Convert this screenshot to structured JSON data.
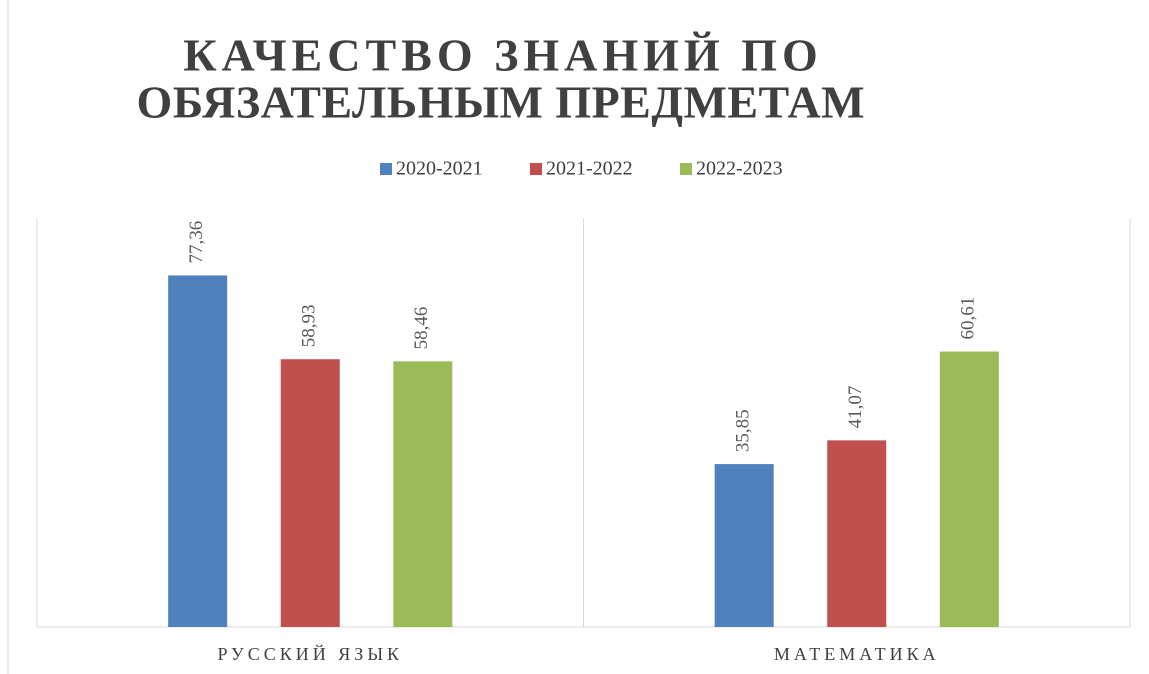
{
  "chart_data": {
    "type": "bar",
    "title": [
      "КАЧЕСТВО ЗНАНИЙ ПО",
      "ОБЯЗАТЕЛЬНЫМ ПРЕДМЕТАМ"
    ],
    "categories": [
      "РУССКИЙ ЯЗЫК",
      "МАТЕМАТИКА"
    ],
    "series": [
      {
        "name": "2020-2021",
        "color": "#4f81bd",
        "values": [
          77.36,
          35.85
        ],
        "value_labels": [
          "77,36",
          "35,85"
        ]
      },
      {
        "name": "2021-2022",
        "color": "#c0504d",
        "values": [
          58.93,
          41.07
        ],
        "value_labels": [
          "58,93",
          "41,07"
        ]
      },
      {
        "name": "2022-2023",
        "color": "#9bbb59",
        "values": [
          58.46,
          60.61
        ],
        "value_labels": [
          "58,46",
          "60,61"
        ]
      }
    ],
    "ylim": [
      0,
      90
    ],
    "legend": "top"
  }
}
